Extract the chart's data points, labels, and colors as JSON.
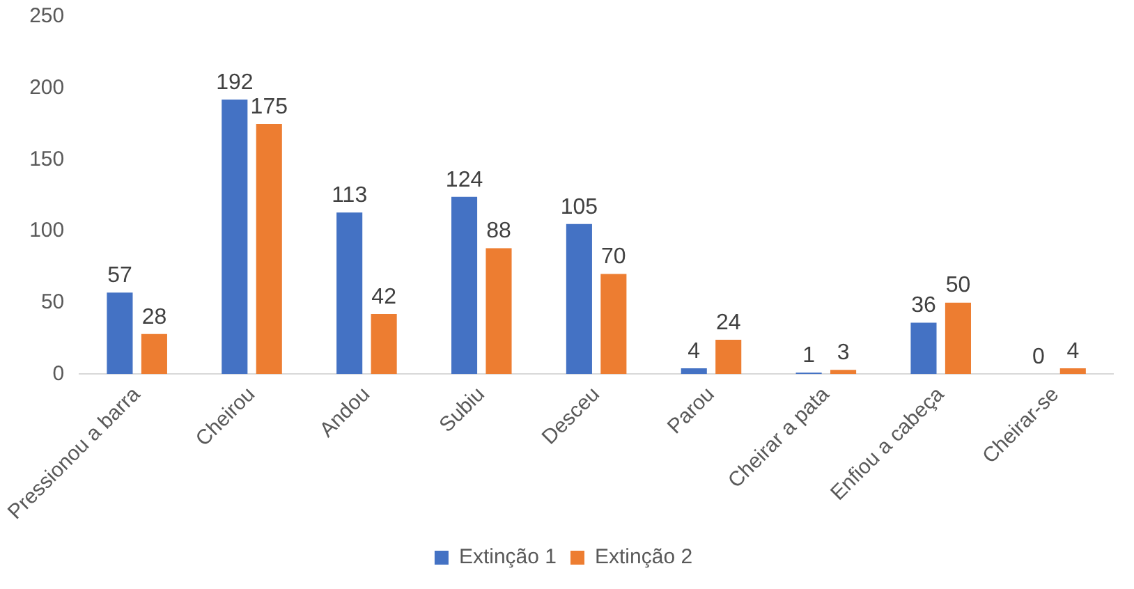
{
  "chart_data": {
    "type": "bar",
    "categories": [
      "Pressionou a barra",
      "Cheirou",
      "Andou",
      "Subiu",
      "Desceu",
      "Parou",
      "Cheirar a pata",
      "Enfiou a cabeça",
      "Cheirar-se"
    ],
    "series": [
      {
        "name": "Extinção 1",
        "color": "#4472c4",
        "values": [
          57,
          192,
          113,
          124,
          105,
          4,
          1,
          36,
          0
        ]
      },
      {
        "name": "Extinção 2",
        "color": "#ed7d31",
        "values": [
          28,
          175,
          42,
          88,
          70,
          24,
          3,
          50,
          4
        ]
      }
    ],
    "ylim": [
      0,
      250
    ],
    "yticks": [
      0,
      50,
      100,
      150,
      200,
      250
    ],
    "grid": false,
    "legend": "bottom",
    "data_labels": true
  }
}
